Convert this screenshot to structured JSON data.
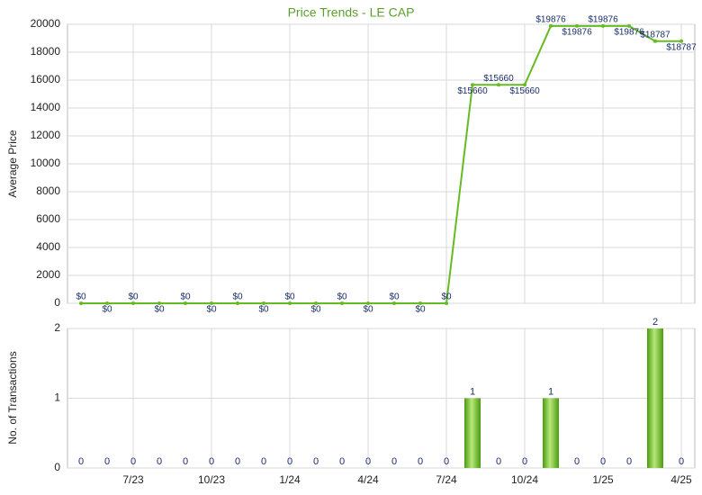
{
  "chart_data": [
    {
      "type": "line",
      "title": "Price Trends - LE CAP",
      "y_label": "Average Price",
      "color": "#66bb22",
      "values": [
        0,
        0,
        0,
        0,
        0,
        0,
        0,
        0,
        0,
        0,
        0,
        0,
        0,
        0,
        0,
        15660,
        15660,
        15660,
        19876,
        19876,
        19876,
        19876,
        18787,
        18787
      ],
      "value_labels": [
        "$0",
        "$0",
        "$0",
        "$0",
        "$0",
        "$0",
        "$0",
        "$0",
        "$0",
        "$0",
        "$0",
        "$0",
        "$0",
        "$0",
        "$0",
        "$15660",
        "$15660",
        "$15660",
        "$19876",
        "$19876",
        "$19876",
        "$19876",
        "$18787",
        "$18787"
      ],
      "ylim": [
        0,
        20000
      ],
      "yticks": [
        0,
        2000,
        4000,
        6000,
        8000,
        10000,
        12000,
        14000,
        16000,
        18000,
        20000
      ],
      "grid": true
    },
    {
      "type": "bar",
      "y_label": "No. of Transactions",
      "color": "#66bb22",
      "categories": [
        null,
        null,
        "7/23",
        null,
        null,
        "10/23",
        null,
        null,
        "1/24",
        null,
        null,
        "4/24",
        null,
        null,
        "7/24",
        null,
        null,
        "10/24",
        null,
        null,
        "1/25",
        null,
        null,
        "4/25"
      ],
      "values": [
        0,
        0,
        0,
        0,
        0,
        0,
        0,
        0,
        0,
        0,
        0,
        0,
        0,
        0,
        0,
        1,
        0,
        0,
        1,
        0,
        0,
        0,
        2,
        0
      ],
      "ylim": [
        0,
        2
      ],
      "yticks": [
        0,
        1,
        2
      ],
      "grid": true
    }
  ]
}
